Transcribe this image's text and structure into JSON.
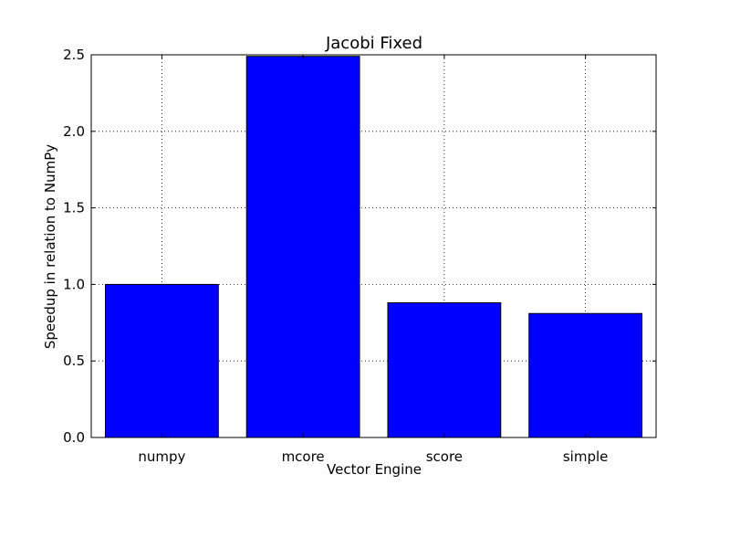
{
  "chart_data": {
    "type": "bar",
    "title": "Jacobi Fixed",
    "xlabel": "Vector Engine",
    "ylabel": "Speedup in relation to NumPy",
    "categories": [
      "numpy",
      "mcore",
      "score",
      "simple"
    ],
    "values": [
      1.0,
      2.49,
      0.88,
      0.81
    ],
    "ylim": [
      0,
      2.5
    ],
    "yticks": [
      0.0,
      0.5,
      1.0,
      1.5,
      2.0,
      2.5
    ],
    "ytick_labels": [
      "0.0",
      "0.5",
      "1.0",
      "1.5",
      "2.0",
      "2.5"
    ],
    "grid": true,
    "bar_color": "#0000ff",
    "edge_color": "#000000"
  }
}
